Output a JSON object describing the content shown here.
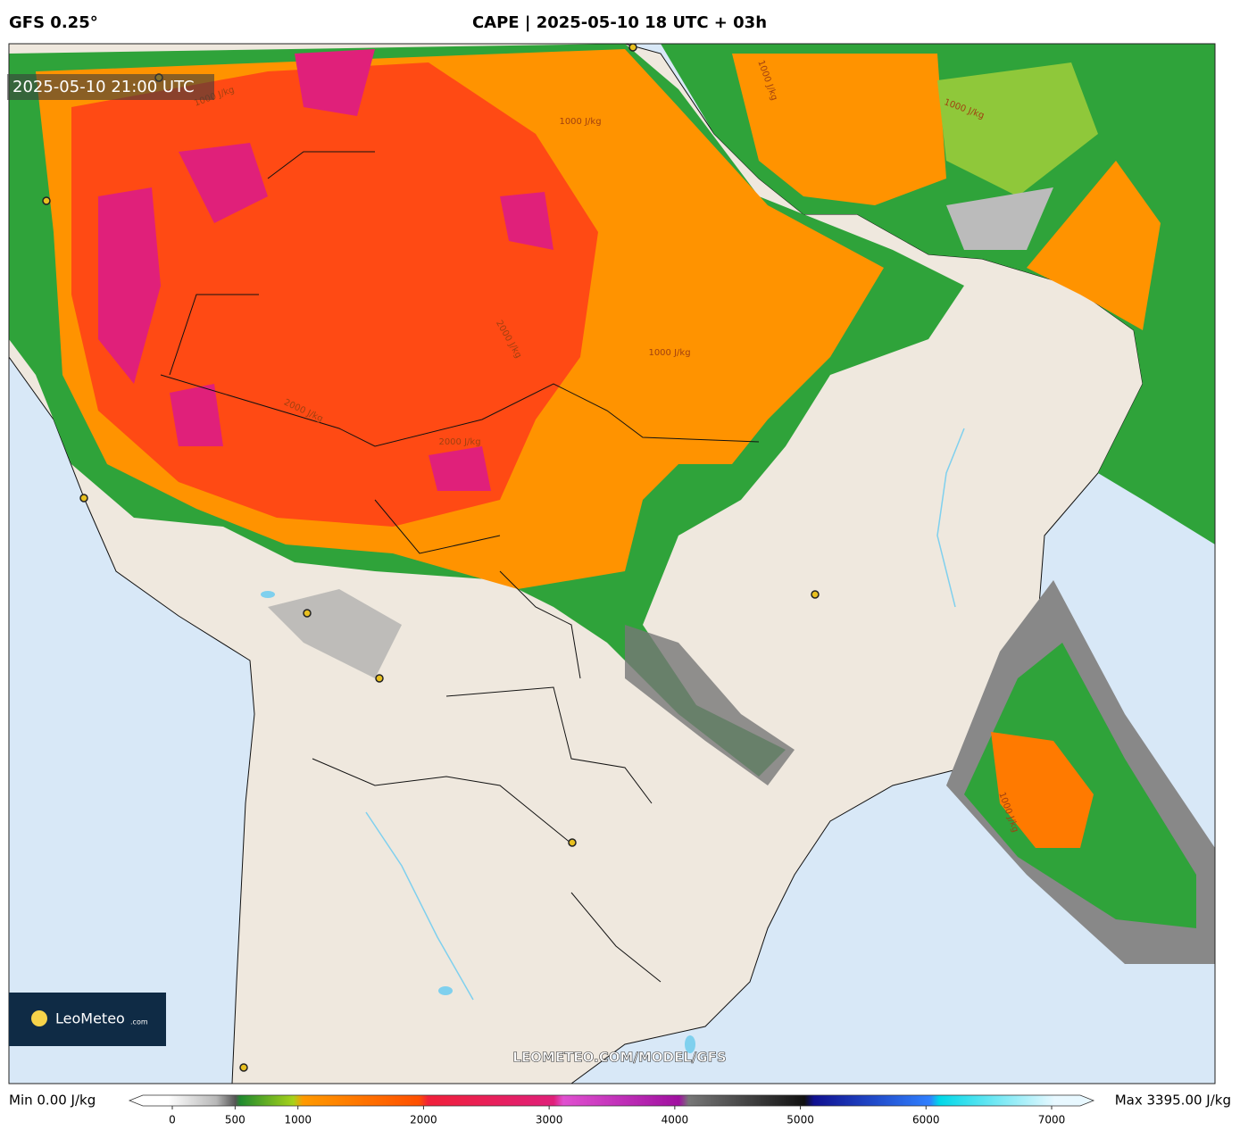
{
  "header": {
    "model": "GFS 0.25°",
    "title": "CAPE | 2025-05-10 18 UTC + 03h"
  },
  "map": {
    "valid_time": "2025-05-10 21:00 UTC",
    "watermark": "LEOMETEO.COM/MODEL/GFS",
    "logo": {
      "name": "LeoMeteo",
      "suffix": ".com"
    },
    "contour_labels": [
      "1000 J/kg",
      "1000 J/kg",
      "1000 J/kg",
      "1000 J/kg",
      "1000 J/kg",
      "2000 J/kg",
      "2000 J/kg",
      "2000 J/kg",
      "1000 J/kg"
    ]
  },
  "colorbar": {
    "min_label": "Min 0.00 J/kg",
    "max_label": "Max 3395.00 J/kg",
    "lim": [
      0,
      7000
    ],
    "ticks": [
      0,
      500,
      1000,
      2000,
      3000,
      4000,
      5000,
      6000,
      7000
    ]
  }
}
